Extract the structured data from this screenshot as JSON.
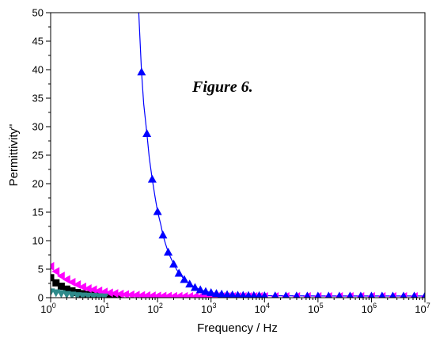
{
  "chart_data": {
    "type": "scatter",
    "title": "",
    "annotation": "Figure 6.",
    "xlabel": "Frequency / Hz",
    "ylabel": "Permittivity\"",
    "x_scale": "log",
    "xlim": [
      1,
      10000000
    ],
    "ylim": [
      0,
      50
    ],
    "x_ticks": [
      {
        "value": 1,
        "base": "10",
        "exp": "0"
      },
      {
        "value": 10,
        "base": "10",
        "exp": "1"
      },
      {
        "value": 100,
        "base": "10",
        "exp": "2"
      },
      {
        "value": 1000,
        "base": "10",
        "exp": "3"
      },
      {
        "value": 10000,
        "base": "10",
        "exp": "4"
      },
      {
        "value": 100000,
        "base": "10",
        "exp": "5"
      },
      {
        "value": 1000000,
        "base": "10",
        "exp": "6"
      },
      {
        "value": 10000000,
        "base": "10",
        "exp": "7"
      }
    ],
    "y_ticks": [
      "0",
      "5",
      "10",
      "15",
      "20",
      "25",
      "30",
      "35",
      "40",
      "45",
      "50"
    ],
    "grid": false,
    "series": [
      {
        "marker": "square",
        "color": "#000000",
        "line": false,
        "x": [
          1,
          1.26,
          1.58,
          2,
          2.51,
          3.16,
          3.98,
          5.01,
          6.31,
          7.94,
          10,
          12.6,
          15.8,
          20
        ],
        "y": [
          3.5,
          2.6,
          2.0,
          1.5,
          1.2,
          0.9,
          0.7,
          0.55,
          0.45,
          0.35,
          0.3,
          0.25,
          0.2,
          0.15
        ]
      },
      {
        "marker": "triangle-left",
        "color": "#ff00ff",
        "line": false,
        "x": [
          1,
          1.26,
          1.58,
          2,
          2.51,
          3.16,
          3.98,
          5.01,
          6.31,
          7.94,
          10,
          12.6,
          15.8,
          20,
          25.1,
          31.6,
          39.8,
          50.1,
          63.1,
          79.4,
          100,
          126,
          158,
          200,
          251,
          316,
          398,
          501,
          631,
          794,
          1000,
          1260,
          1580,
          2000,
          2510,
          3160,
          3980,
          5010,
          6310,
          7940,
          10000,
          15800,
          25100,
          39800,
          63100,
          100000,
          158000,
          251000,
          398000,
          631000,
          1000000,
          1580000,
          2510000,
          3980000,
          6310000,
          10000000
        ],
        "y": [
          5.5,
          4.6,
          3.8,
          3.2,
          2.7,
          2.3,
          1.9,
          1.6,
          1.4,
          1.2,
          1.0,
          0.85,
          0.75,
          0.65,
          0.55,
          0.5,
          0.45,
          0.4,
          0.36,
          0.33,
          0.3,
          0.28,
          0.26,
          0.25,
          0.24,
          0.23,
          0.22,
          0.21,
          0.21,
          0.2,
          0.2,
          0.2,
          0.2,
          0.2,
          0.2,
          0.2,
          0.2,
          0.2,
          0.2,
          0.2,
          0.2,
          0.2,
          0.2,
          0.2,
          0.2,
          0.2,
          0.2,
          0.2,
          0.2,
          0.2,
          0.2,
          0.2,
          0.2,
          0.2,
          0.2,
          0.2
        ]
      },
      {
        "marker": "triangle-down",
        "color": "#2e8b8b",
        "line": false,
        "x": [
          1,
          1.26,
          1.58,
          2,
          2.51,
          3.16,
          3.98,
          5.01,
          6.31,
          7.94,
          10
        ],
        "y": [
          1.0,
          0.85,
          0.7,
          0.55,
          0.45,
          0.35,
          0.3,
          0.25,
          0.2,
          0.15,
          0.12
        ]
      },
      {
        "marker": "triangle-up",
        "color": "#0000ff",
        "line": true,
        "x": [
          50.1,
          63.1,
          79.4,
          100,
          126,
          158,
          200,
          251,
          316,
          398,
          501,
          631,
          794,
          1000,
          1260,
          1580,
          2000,
          2510,
          3160,
          3980,
          5010,
          6310,
          7940,
          10000,
          15800,
          25100,
          39800,
          63100,
          100000,
          158000,
          251000,
          398000,
          631000,
          1000000,
          1580000,
          2510000,
          3980000,
          6310000,
          10000000
        ],
        "y": [
          39.6,
          28.8,
          20.8,
          15.1,
          11.0,
          8.0,
          5.9,
          4.3,
          3.2,
          2.4,
          1.8,
          1.4,
          1.1,
          0.9,
          0.75,
          0.65,
          0.55,
          0.5,
          0.45,
          0.42,
          0.4,
          0.38,
          0.36,
          0.35,
          0.33,
          0.32,
          0.31,
          0.3,
          0.3,
          0.3,
          0.3,
          0.3,
          0.3,
          0.3,
          0.3,
          0.3,
          0.3,
          0.3,
          0.3
        ],
        "curve_x": [
          44,
          46,
          48,
          50.1,
          55,
          63.1,
          70,
          79.4,
          90,
          100,
          115,
          126,
          140,
          158,
          180,
          200,
          225,
          251,
          285,
          316,
          360,
          398,
          450,
          501,
          560,
          631,
          700,
          794,
          900,
          1000,
          1260,
          1580,
          2000,
          2510,
          3160,
          3980,
          5010,
          6310,
          7940,
          10000,
          100000,
          1000000,
          10000000
        ],
        "curve_y": [
          51,
          47,
          43.3,
          39.6,
          34,
          28.8,
          24.5,
          20.8,
          17.6,
          15.1,
          12.8,
          11.0,
          9.5,
          8.0,
          6.8,
          5.9,
          5.0,
          4.3,
          3.7,
          3.2,
          2.75,
          2.4,
          2.1,
          1.8,
          1.6,
          1.4,
          1.25,
          1.1,
          1.0,
          0.9,
          0.75,
          0.65,
          0.55,
          0.5,
          0.45,
          0.42,
          0.4,
          0.38,
          0.36,
          0.35,
          0.3,
          0.3,
          0.3
        ]
      }
    ]
  }
}
